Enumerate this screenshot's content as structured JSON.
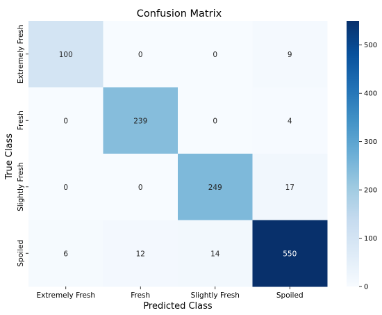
{
  "chart_data": {
    "type": "heatmap",
    "title": "Confusion Matrix",
    "xlabel": "Predicted Class",
    "ylabel": "True Class",
    "x_categories": [
      "Extremely Fresh",
      "Fresh",
      "Slightly Fresh",
      "Spoiled"
    ],
    "y_categories": [
      "Extremely Fresh",
      "Fresh",
      "Slightly Fresh",
      "Spoiled"
    ],
    "values": [
      [
        100,
        0,
        0,
        9
      ],
      [
        0,
        239,
        0,
        4
      ],
      [
        0,
        0,
        249,
        17
      ],
      [
        6,
        12,
        14,
        550
      ]
    ],
    "colormap": "Blues",
    "color_range": [
      0,
      550
    ],
    "colorbar_ticks": [
      0,
      100,
      200,
      300,
      400,
      500
    ],
    "annotations": true,
    "grid": false,
    "colorbar_position": "right"
  }
}
